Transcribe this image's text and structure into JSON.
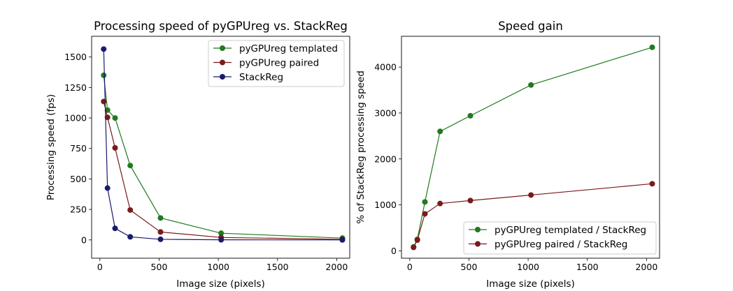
{
  "chart_data": [
    {
      "type": "line",
      "title": "Processing speed of pyGPUreg vs. StackReg",
      "xlabel": "Image size (pixels)",
      "ylabel": "Processing speed (fps)",
      "xlim": [
        -70,
        2110
      ],
      "ylim": [
        -150,
        1670
      ],
      "xticks": [
        0,
        500,
        1000,
        1500,
        2000
      ],
      "yticks": [
        0,
        250,
        500,
        750,
        1000,
        1250,
        1500
      ],
      "grid": false,
      "legend_position": "top-right",
      "series": [
        {
          "name": "pyGPUreg templated",
          "color": "#1f7a1f",
          "x": [
            32,
            64,
            128,
            256,
            512,
            1024,
            2048
          ],
          "y": [
            1350,
            1065,
            1000,
            610,
            180,
            55,
            15
          ]
        },
        {
          "name": "pyGPUreg paired",
          "color": "#7a1a1a",
          "x": [
            32,
            64,
            128,
            256,
            512,
            1024,
            2048
          ],
          "y": [
            1135,
            1005,
            755,
            245,
            65,
            20,
            5
          ]
        },
        {
          "name": "StackReg",
          "color": "#1a1a6e",
          "x": [
            32,
            64,
            128,
            256,
            512,
            1024,
            2048
          ],
          "y": [
            1565,
            425,
            95,
            25,
            5,
            1,
            0
          ]
        }
      ]
    },
    {
      "type": "line",
      "title": "Speed gain",
      "xlabel": "Image size (pixels)",
      "ylabel": "% of StackReg processing speed",
      "xlim": [
        -70,
        2110
      ],
      "ylim": [
        -160,
        4670
      ],
      "xticks": [
        0,
        500,
        1000,
        1500,
        2000
      ],
      "yticks": [
        0,
        1000,
        2000,
        3000,
        4000
      ],
      "grid": false,
      "legend_position": "bottom-right",
      "series": [
        {
          "name": "pyGPUreg templated / StackReg",
          "color": "#1f7a1f",
          "x": [
            32,
            64,
            128,
            256,
            512,
            1024,
            2048
          ],
          "y": [
            85,
            250,
            1065,
            2600,
            2940,
            3610,
            4430
          ]
        },
        {
          "name": "pyGPUreg paired / StackReg",
          "color": "#7a1a1a",
          "x": [
            32,
            64,
            128,
            256,
            512,
            1024,
            2048
          ],
          "y": [
            75,
            235,
            805,
            1030,
            1095,
            1215,
            1460
          ]
        }
      ]
    }
  ]
}
